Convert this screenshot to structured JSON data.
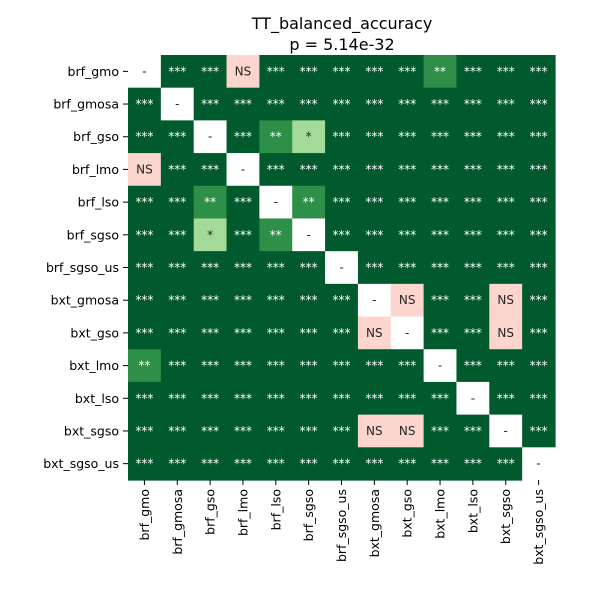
{
  "chart_data": {
    "type": "heatmap",
    "title": "TT_balanced_accuracy",
    "subtitle": "p = 5.14e-32",
    "xlabel": "",
    "ylabel": "",
    "legend": "none",
    "grid": false,
    "categories": [
      "brf_gmo",
      "brf_gmosa",
      "brf_gso",
      "brf_lmo",
      "brf_lso",
      "brf_sgso",
      "brf_sgso_us",
      "bxt_gmosa",
      "bxt_gso",
      "bxt_lmo",
      "bxt_lso",
      "bxt_sgso",
      "bxt_sgso_us"
    ],
    "level_colors": {
      "-": "#ffffff",
      "NS": "#fbd5ce",
      "*": "#a3da98",
      "**": "#2d8f48",
      "***": "#005a2d"
    },
    "text_colors": {
      "-": "#262626",
      "NS": "#262626",
      "*": "#262626",
      "**": "#ffffff",
      "***": "#ffffff"
    },
    "matrix": [
      [
        "-",
        "***",
        "***",
        "NS",
        "***",
        "***",
        "***",
        "***",
        "***",
        "**",
        "***",
        "***",
        "***"
      ],
      [
        "***",
        "-",
        "***",
        "***",
        "***",
        "***",
        "***",
        "***",
        "***",
        "***",
        "***",
        "***",
        "***"
      ],
      [
        "***",
        "***",
        "-",
        "***",
        "**",
        "*",
        "***",
        "***",
        "***",
        "***",
        "***",
        "***",
        "***"
      ],
      [
        "NS",
        "***",
        "***",
        "-",
        "***",
        "***",
        "***",
        "***",
        "***",
        "***",
        "***",
        "***",
        "***"
      ],
      [
        "***",
        "***",
        "**",
        "***",
        "-",
        "**",
        "***",
        "***",
        "***",
        "***",
        "***",
        "***",
        "***"
      ],
      [
        "***",
        "***",
        "*",
        "***",
        "**",
        "-",
        "***",
        "***",
        "***",
        "***",
        "***",
        "***",
        "***"
      ],
      [
        "***",
        "***",
        "***",
        "***",
        "***",
        "***",
        "-",
        "***",
        "***",
        "***",
        "***",
        "***",
        "***"
      ],
      [
        "***",
        "***",
        "***",
        "***",
        "***",
        "***",
        "***",
        "-",
        "NS",
        "***",
        "***",
        "NS",
        "***"
      ],
      [
        "***",
        "***",
        "***",
        "***",
        "***",
        "***",
        "***",
        "NS",
        "-",
        "***",
        "***",
        "NS",
        "***"
      ],
      [
        "**",
        "***",
        "***",
        "***",
        "***",
        "***",
        "***",
        "***",
        "***",
        "-",
        "***",
        "***",
        "***"
      ],
      [
        "***",
        "***",
        "***",
        "***",
        "***",
        "***",
        "***",
        "***",
        "***",
        "***",
        "-",
        "***",
        "***"
      ],
      [
        "***",
        "***",
        "***",
        "***",
        "***",
        "***",
        "***",
        "NS",
        "NS",
        "***",
        "***",
        "-",
        "***"
      ],
      [
        "***",
        "***",
        "***",
        "***",
        "***",
        "***",
        "***",
        "***",
        "***",
        "***",
        "***",
        "***",
        "-"
      ]
    ]
  }
}
